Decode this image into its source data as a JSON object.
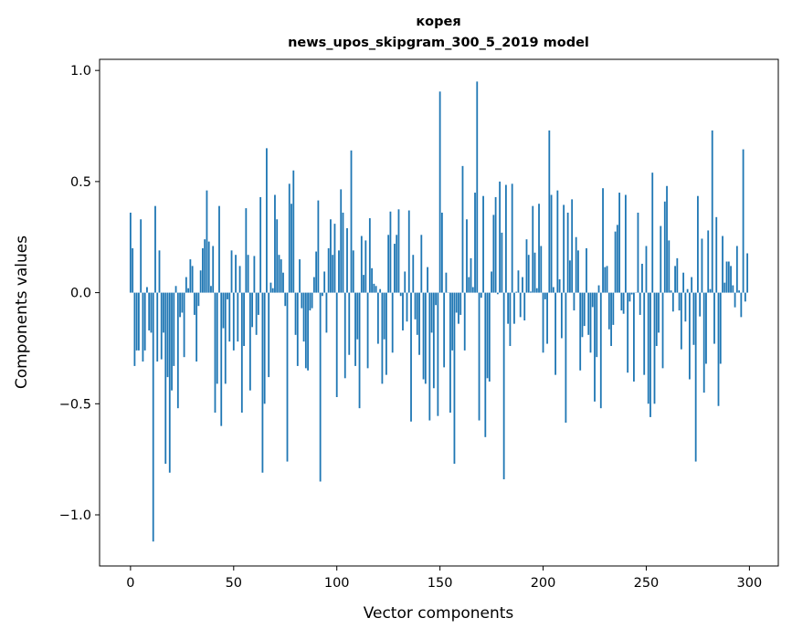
{
  "chart_data": {
    "type": "bar",
    "title": "корея",
    "subtitle": "news_upos_skipgram_300_5_2019 model",
    "xlabel": "Vector components",
    "ylabel": "Components values",
    "xlim": [
      -15,
      314
    ],
    "ylim": [
      -1.23,
      1.05
    ],
    "xticks": [
      0,
      50,
      100,
      150,
      200,
      250,
      300
    ],
    "xtick_labels": [
      "0",
      "50",
      "100",
      "150",
      "200",
      "250",
      "300"
    ],
    "yticks": [
      -1.0,
      -0.5,
      0.0,
      0.5,
      1.0
    ],
    "ytick_labels": [
      "−1.0",
      "−0.5",
      "0.0",
      "0.5",
      "1.0"
    ],
    "grid": false,
    "bar_color": "#1f77b4",
    "values": [
      0.36,
      0.2,
      -0.33,
      -0.26,
      -0.26,
      0.33,
      -0.31,
      -0.26,
      0.025,
      -0.17,
      -0.18,
      -1.12,
      0.39,
      -0.31,
      0.19,
      -0.3,
      -0.18,
      -0.77,
      -0.38,
      -0.81,
      -0.44,
      -0.33,
      0.03,
      -0.52,
      -0.11,
      -0.09,
      -0.29,
      0.07,
      0.02,
      0.15,
      0.12,
      -0.1,
      -0.31,
      -0.06,
      0.1,
      0.2,
      0.24,
      0.46,
      0.23,
      0.03,
      0.21,
      -0.54,
      -0.41,
      0.39,
      -0.6,
      -0.16,
      -0.41,
      -0.03,
      -0.22,
      0.19,
      -0.26,
      0.17,
      -0.22,
      0.12,
      -0.54,
      -0.24,
      0.38,
      0.17,
      -0.44,
      -0.155,
      0.165,
      -0.19,
      -0.1,
      0.43,
      -0.81,
      -0.5,
      0.65,
      -0.38,
      0.045,
      0.02,
      0.44,
      0.33,
      0.17,
      0.15,
      0.09,
      -0.06,
      -0.76,
      0.49,
      0.4,
      0.55,
      -0.19,
      -0.33,
      0.15,
      -0.07,
      -0.22,
      -0.34,
      -0.35,
      -0.08,
      -0.07,
      0.07,
      0.185,
      0.415,
      -0.85,
      -0.015,
      0.095,
      -0.18,
      0.2,
      0.33,
      0.17,
      0.31,
      -0.47,
      0.19,
      0.465,
      0.36,
      -0.385,
      0.29,
      -0.28,
      0.64,
      0.19,
      -0.33,
      -0.21,
      -0.52,
      0.255,
      0.08,
      0.235,
      -0.34,
      0.335,
      0.11,
      0.04,
      0.03,
      -0.23,
      0.016,
      -0.41,
      -0.21,
      -0.37,
      0.26,
      0.365,
      -0.27,
      0.22,
      0.26,
      0.375,
      -0.015,
      -0.17,
      0.095,
      -0.13,
      0.37,
      -0.58,
      0.17,
      -0.12,
      -0.19,
      -0.28,
      0.26,
      -0.39,
      -0.41,
      0.115,
      -0.575,
      -0.18,
      -0.43,
      -0.056,
      -0.555,
      0.905,
      0.36,
      -0.336,
      0.09,
      0.0,
      -0.54,
      -0.26,
      -0.77,
      -0.09,
      -0.14,
      -0.1,
      0.57,
      -0.26,
      0.33,
      0.07,
      0.155,
      0.025,
      0.45,
      0.95,
      -0.575,
      -0.023,
      0.435,
      -0.65,
      -0.385,
      -0.4,
      0.095,
      0.35,
      0.43,
      -0.007,
      0.5,
      0.27,
      -0.84,
      0.485,
      -0.14,
      -0.24,
      0.49,
      -0.14,
      0.004,
      0.1,
      -0.11,
      0.07,
      -0.125,
      0.24,
      0.17,
      0.005,
      0.39,
      0.18,
      0.02,
      0.4,
      0.21,
      -0.27,
      -0.03,
      -0.23,
      0.73,
      0.44,
      0.025,
      -0.37,
      0.46,
      0.06,
      -0.205,
      0.395,
      -0.585,
      0.36,
      0.145,
      0.42,
      -0.08,
      0.25,
      0.19,
      -0.35,
      -0.2,
      -0.15,
      0.2,
      -0.19,
      -0.27,
      -0.065,
      -0.49,
      -0.29,
      0.033,
      -0.52,
      0.47,
      0.115,
      0.12,
      -0.165,
      -0.24,
      -0.145,
      0.275,
      0.305,
      0.45,
      -0.08,
      -0.095,
      0.44,
      -0.36,
      -0.04,
      -0.008,
      -0.4,
      0.0,
      0.36,
      -0.1,
      0.13,
      -0.37,
      0.21,
      -0.5,
      -0.56,
      0.54,
      -0.5,
      -0.24,
      -0.18,
      0.3,
      -0.34,
      0.41,
      0.48,
      0.235,
      0.01,
      -0.085,
      0.12,
      0.155,
      -0.08,
      -0.255,
      0.09,
      -0.13,
      0.016,
      -0.39,
      0.07,
      -0.235,
      -0.76,
      0.435,
      -0.107,
      0.243,
      -0.45,
      -0.32,
      0.28,
      0.016,
      0.73,
      -0.23,
      0.34,
      -0.51,
      -0.32,
      0.255,
      0.045,
      0.14,
      0.14,
      0.12,
      0.033,
      -0.066,
      0.21,
      0.01,
      -0.11,
      0.645,
      -0.04,
      0.177
    ]
  }
}
